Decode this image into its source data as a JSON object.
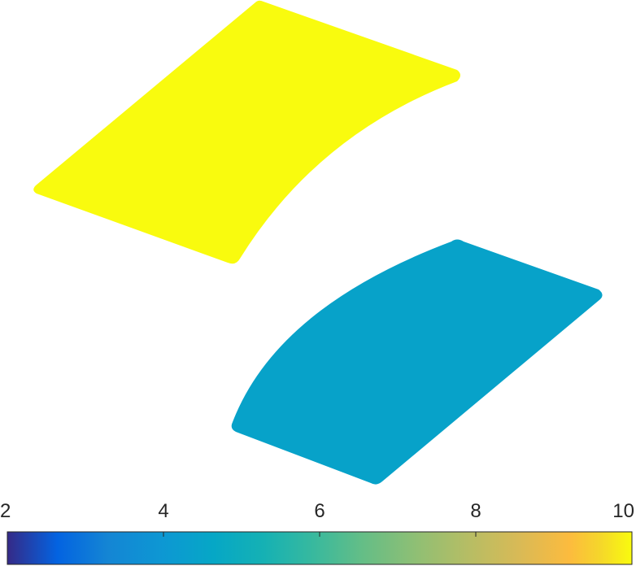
{
  "chart_data": {
    "type": "patch",
    "title": "",
    "colormap": "parula",
    "colorbar": {
      "location": "bottom",
      "range": [
        2,
        10
      ],
      "ticks": [
        2,
        4,
        6,
        8,
        10
      ],
      "tick_labels": [
        "2",
        "4",
        "6",
        "8",
        "10"
      ]
    },
    "patches": [
      {
        "value": 10.0,
        "color": "#f9fb0e"
      },
      {
        "value": 5.6,
        "color": "#07a2c9"
      }
    ],
    "grid": false,
    "axes_visible": false
  }
}
